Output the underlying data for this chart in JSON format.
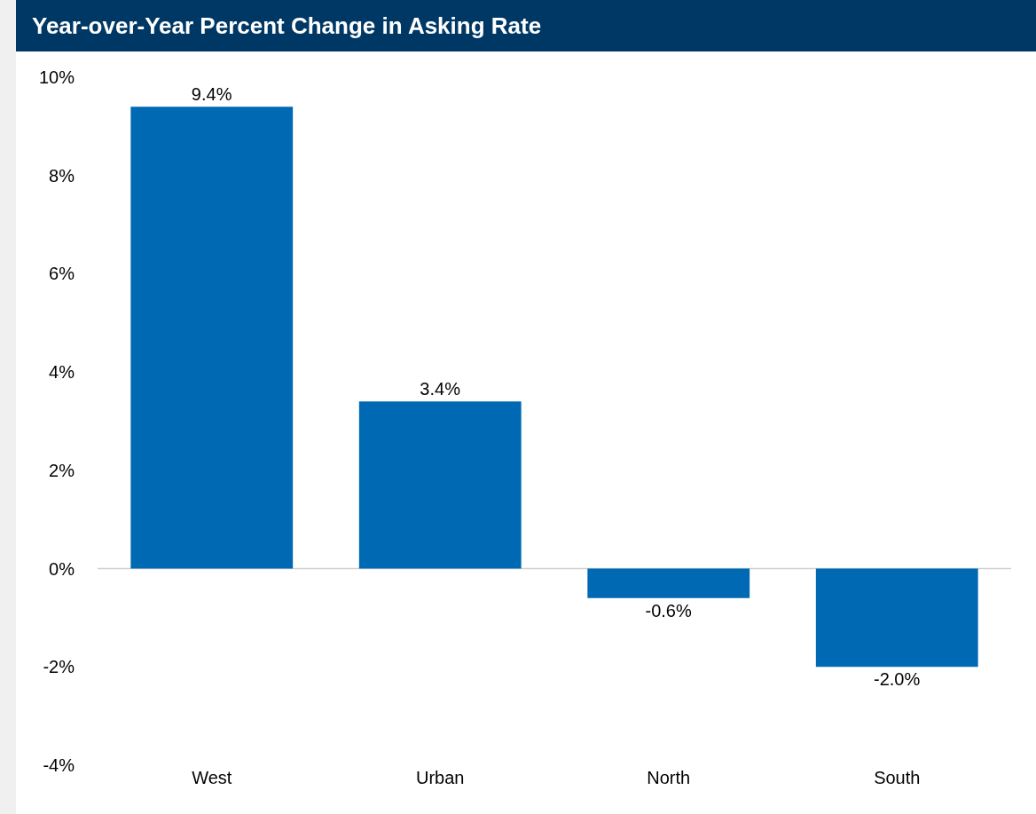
{
  "chart_data": {
    "type": "bar",
    "title": "Year-over-Year Percent Change in Asking Rate",
    "categories": [
      "West",
      "Urban",
      "North",
      "South"
    ],
    "values": [
      9.4,
      3.4,
      -0.6,
      -2.0
    ],
    "value_labels": [
      "9.4%",
      "3.4%",
      "-0.6%",
      "-2.0%"
    ],
    "color": "#0069b4",
    "ylim": [
      -4,
      10
    ],
    "yticks": [
      {
        "value": -4,
        "label": "-4%"
      },
      {
        "value": -2,
        "label": "-2%"
      },
      {
        "value": 0,
        "label": "0%"
      },
      {
        "value": 2,
        "label": "2%"
      },
      {
        "value": 4,
        "label": "4%"
      },
      {
        "value": 6,
        "label": "6%"
      },
      {
        "value": 8,
        "label": "8%"
      },
      {
        "value": 10,
        "label": "10%"
      }
    ],
    "ref_lines": [
      {
        "axis": "y",
        "value": 0,
        "color": "#d0d0d0"
      }
    ],
    "grid": false,
    "legend": false
  }
}
